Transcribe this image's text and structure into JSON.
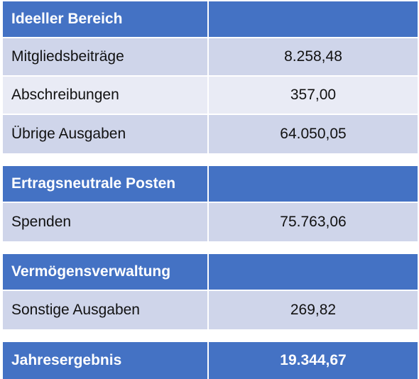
{
  "sections": [
    {
      "title": "Ideeller Bereich",
      "rows": [
        {
          "label": "Mitgliedsbeiträge",
          "value": "8.258,48"
        },
        {
          "label": "Abschreibungen",
          "value": "357,00"
        },
        {
          "label": "Übrige Ausgaben",
          "value": "64.050,05"
        }
      ]
    },
    {
      "title": "Ertragsneutrale Posten",
      "rows": [
        {
          "label": "Spenden",
          "value": "75.763,06"
        }
      ]
    },
    {
      "title": "Vermögensverwaltung",
      "rows": [
        {
          "label": "Sonstige Ausgaben",
          "value": "269,82"
        }
      ]
    }
  ],
  "result": {
    "label": "Jahresergebnis",
    "value": "19.344,67"
  },
  "colors": {
    "header": "#4472c4",
    "row_dark": "#cfd5ea",
    "row_light": "#e9ebf5"
  }
}
